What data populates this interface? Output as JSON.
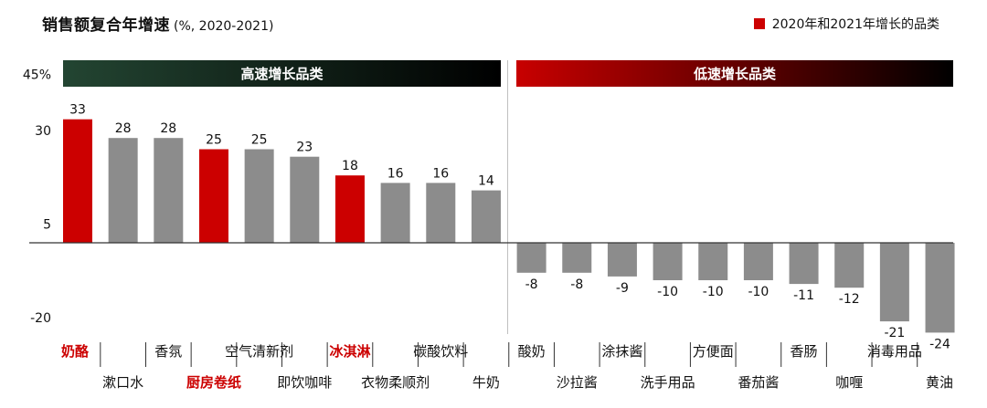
{
  "chart_data": {
    "type": "bar",
    "title": "销售额复合年增速",
    "subtitle": "(%, 2020-2021)",
    "legend": [
      {
        "label": "2020年和2021年增长的品类",
        "color": "#cc0000"
      }
    ],
    "y_tick_labels": [
      {
        "value": 45,
        "label": "45%"
      },
      {
        "value": 30,
        "label": "30"
      },
      {
        "value": 5,
        "label": "5"
      },
      {
        "value": -20,
        "label": "-20"
      }
    ],
    "groups": [
      {
        "label": "高速增长品类",
        "count": 10,
        "color_from": "#234532",
        "color_to": "#000000"
      },
      {
        "label": "低速增长品类",
        "count": 10,
        "color_from": "#c80000",
        "color_to": "#000000"
      }
    ],
    "categories": [
      "奶酪",
      "漱口水",
      "香氛",
      "厨房卷纸",
      "空气清新剂",
      "即饮咖啡",
      "冰淇淋",
      "衣物柔顺剂",
      "碳酸饮料",
      "牛奶",
      "酸奶",
      "沙拉酱",
      "涂抹酱",
      "洗手用品",
      "方便面",
      "番茄酱",
      "香肠",
      "咖喱",
      "消毒用品",
      "黄油"
    ],
    "values": [
      33,
      28,
      28,
      25,
      25,
      23,
      18,
      16,
      16,
      14,
      -8,
      -8,
      -9,
      -10,
      -10,
      -10,
      -11,
      -12,
      -21,
      -24
    ],
    "value_labels": [
      "33",
      "28",
      "28",
      "25",
      "25",
      "23",
      "18",
      "16",
      "16",
      "14",
      "-8",
      "-8",
      "-9",
      "-10",
      "-10",
      "-10",
      "-11",
      "-12",
      "-21",
      "-24"
    ],
    "highlighted": [
      true,
      false,
      false,
      true,
      false,
      false,
      true,
      false,
      false,
      false,
      false,
      false,
      false,
      false,
      false,
      false,
      false,
      false,
      false,
      false
    ],
    "colors": {
      "highlight": "#cc0000",
      "normal": "#8c8c8c",
      "divider": "#c0c0c0",
      "label_highlight": "#cc0000"
    }
  }
}
